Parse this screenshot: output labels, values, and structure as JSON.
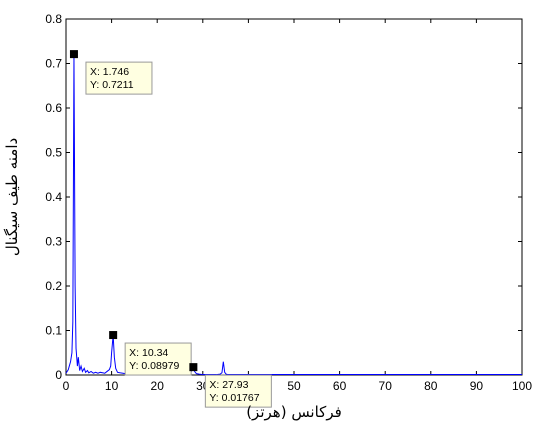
{
  "chart_data": {
    "type": "line",
    "title": "",
    "xlabel": "فرکانس (هرتز)",
    "ylabel": "دامنه طیف سیگنال",
    "xlim": [
      0,
      100
    ],
    "ylim": [
      0,
      0.8
    ],
    "x_ticks": [
      "0",
      "10",
      "20",
      "30",
      "40",
      "50",
      "60",
      "70",
      "80",
      "90",
      "100"
    ],
    "y_ticks": [
      "0",
      "0.1",
      "0.2",
      "0.3",
      "0.4",
      "0.5",
      "0.6",
      "0.7",
      "0.8"
    ],
    "grid": false,
    "line_color": "#0000ff",
    "series": [
      {
        "x": [
          0,
          0.5,
          1.0,
          1.3,
          1.5,
          1.746,
          2.0,
          2.2,
          2.5,
          2.7,
          3.0,
          3.3,
          3.6,
          4.0,
          4.3,
          4.7,
          5.0,
          5.5,
          6.0,
          6.5,
          7.0,
          7.5,
          8.0,
          8.5,
          9.0,
          9.5,
          9.8,
          10.0,
          10.34,
          10.6,
          10.9,
          11.3,
          11.8,
          12.5,
          13.0,
          13.4,
          13.8,
          14.5,
          15.0,
          15.5,
          16.0,
          17.0,
          18.0,
          19.0,
          20.0,
          21.0,
          22.0,
          23.0,
          24.0,
          25.0,
          26.0,
          26.8,
          27.3,
          27.6,
          27.93,
          28.2,
          28.6,
          29.2,
          30.0,
          31.0,
          32.0,
          33.0,
          33.8,
          34.2,
          34.5,
          34.8,
          35.1,
          35.5,
          36.0,
          37.0,
          38.0,
          40.0,
          42.0,
          45.0,
          48.0,
          50.0,
          52.0,
          55.0,
          58.0,
          60.0,
          62.0,
          65.0,
          68.0,
          70.0,
          72.0,
          75.0,
          78.0,
          80.0,
          82.0,
          85.0,
          88.0,
          90.0,
          92.0,
          95.0,
          98.0,
          100.0
        ],
        "y": [
          0.004,
          0.012,
          0.03,
          0.05,
          0.12,
          0.7211,
          0.2,
          0.06,
          0.02,
          0.04,
          0.01,
          0.02,
          0.008,
          0.015,
          0.006,
          0.01,
          0.005,
          0.008,
          0.004,
          0.006,
          0.004,
          0.006,
          0.005,
          0.004,
          0.008,
          0.012,
          0.02,
          0.05,
          0.08979,
          0.04,
          0.015,
          0.006,
          0.005,
          0.004,
          0.003,
          0.008,
          0.003,
          0.003,
          0.002,
          0.003,
          0.002,
          0.002,
          0.002,
          0.001,
          0.002,
          0.001,
          0.001,
          0.002,
          0.001,
          0.001,
          0.002,
          0.003,
          0.006,
          0.01,
          0.01767,
          0.008,
          0.003,
          0.002,
          0.001,
          0.001,
          0.001,
          0.001,
          0.002,
          0.005,
          0.03,
          0.006,
          0.002,
          0.001,
          0.001,
          0.001,
          0.001,
          0.001,
          0.001,
          0.001,
          0.001,
          0.001,
          0.001,
          0.001,
          0.001,
          0.001,
          0.001,
          0.001,
          0.001,
          0.001,
          0.001,
          0.001,
          0.001,
          0.001,
          0.001,
          0.001,
          0.001,
          0.001,
          0.001,
          0.001,
          0.001,
          0.001
        ]
      }
    ],
    "datatips": [
      {
        "x": 1.746,
        "y": 0.7211,
        "x_text": "X: 1.746",
        "y_text": "Y: 0.7211"
      },
      {
        "x": 10.34,
        "y": 0.08979,
        "x_text": "X: 10.34",
        "y_text": "Y: 0.08979"
      },
      {
        "x": 27.93,
        "y": 0.01767,
        "x_text": "X: 27.93",
        "y_text": "Y: 0.01767"
      }
    ]
  }
}
